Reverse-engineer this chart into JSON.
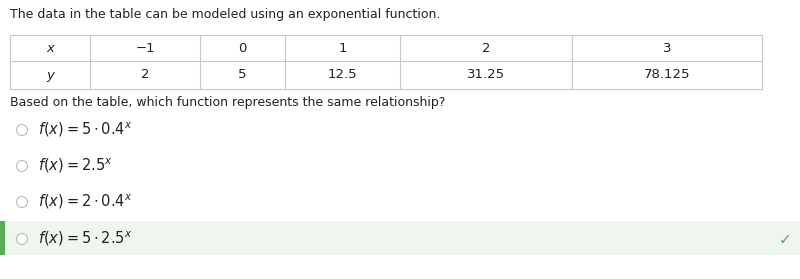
{
  "title_text": "The data in the table can be modeled using an exponential function.",
  "table_x_values": [
    "−1",
    "0",
    "1",
    "2",
    "3"
  ],
  "table_y_values": [
    "2",
    "5",
    "12.5",
    "31.25",
    "78.125"
  ],
  "question_text": "Based on the table, which function represents the same relationship?",
  "options_correct": [
    false,
    false,
    false,
    true
  ],
  "bg_color": "#ffffff",
  "table_border_color": "#c8c8c8",
  "correct_bg_color": "#eef6ee",
  "correct_bar_color": "#5aaa5a",
  "check_color": "#5aaa5a",
  "radio_color": "#bbbbbb",
  "text_color": "#222222",
  "title_fontsize": 9.0,
  "table_fontsize": 9.5,
  "option_fontsize": 10.5,
  "x_label": "x",
  "y_label": "y"
}
